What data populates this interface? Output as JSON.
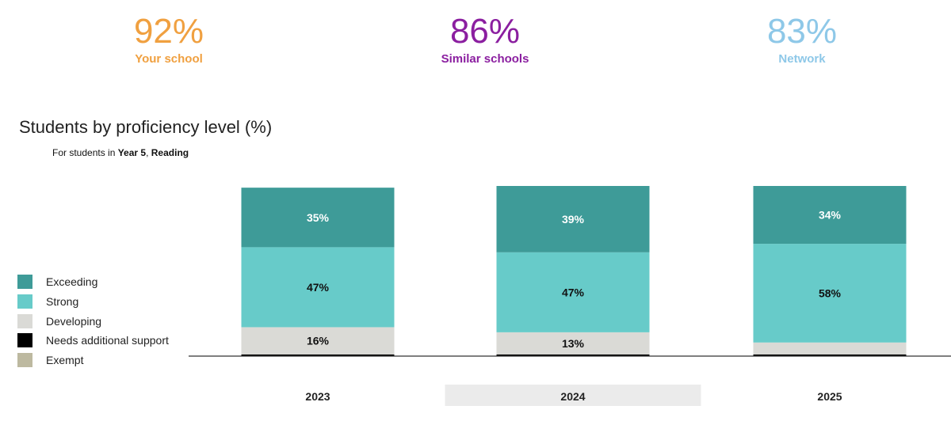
{
  "kpis": [
    {
      "value": "92%",
      "label": "Your school",
      "color": "#F0A040"
    },
    {
      "value": "86%",
      "label": "Similar schools",
      "color": "#8B1FA0"
    },
    {
      "value": "83%",
      "label": "Network",
      "color": "#8EC8E8"
    }
  ],
  "subtitle": {
    "prefix": "For students in ",
    "year": "Year 5",
    "sep": ", ",
    "subject": "Reading"
  },
  "chart_data": {
    "type": "bar",
    "stacked": true,
    "title": "Students by proficiency level (%)",
    "categories": [
      "2023",
      "2024",
      "2025"
    ],
    "highlighted_category": "2024",
    "series": [
      {
        "name": "Exceeding",
        "values": [
          35,
          39,
          34
        ],
        "labels": [
          "35%",
          "39%",
          "34%"
        ],
        "color": "#3E9B98"
      },
      {
        "name": "Strong",
        "values": [
          47,
          47,
          58
        ],
        "labels": [
          "47%",
          "47%",
          "58%"
        ],
        "color": "#67CBC9"
      },
      {
        "name": "Developing",
        "values": [
          16,
          13,
          7
        ],
        "labels": [
          "16%",
          "13%",
          ""
        ],
        "color": "#DADAD6"
      },
      {
        "name": "Needs additional support",
        "values": [
          1,
          1,
          1
        ],
        "labels": [
          "",
          "",
          ""
        ],
        "color": "#000000"
      },
      {
        "name": "Exempt",
        "values": [
          0,
          0,
          0
        ],
        "labels": [
          "",
          "",
          ""
        ],
        "color": "#BDB9A0"
      }
    ],
    "legend_position": "left",
    "grid": false
  }
}
